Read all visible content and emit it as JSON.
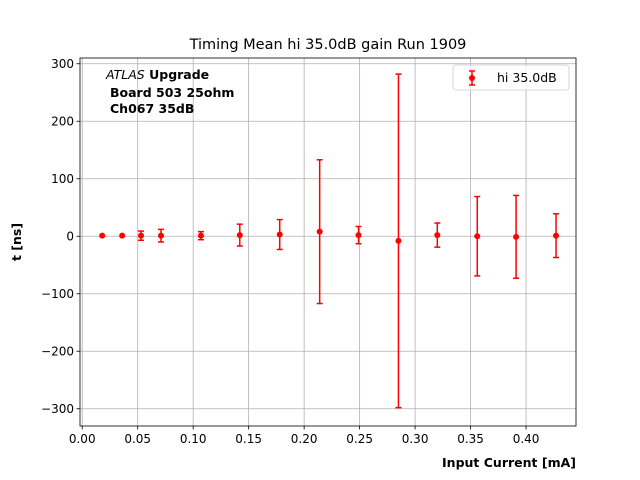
{
  "chart_data": {
    "type": "scatter",
    "title": "Timing Mean hi 35.0dB gain Run 1909",
    "xlabel": "Input Current [mA]",
    "ylabel": "t [ns]",
    "xlim": [
      -0.002,
      0.445
    ],
    "ylim": [
      -330,
      310
    ],
    "xticks": [
      0.0,
      0.05,
      0.1,
      0.15,
      0.2,
      0.25,
      0.3,
      0.35,
      0.4
    ],
    "xtick_labels": [
      "0.00",
      "0.05",
      "0.10",
      "0.15",
      "0.20",
      "0.25",
      "0.30",
      "0.35",
      "0.40"
    ],
    "yticks": [
      -300,
      -200,
      -100,
      0,
      100,
      200,
      300
    ],
    "ytick_labels": [
      "−300",
      "−200",
      "−100",
      "0",
      "100",
      "200",
      "300"
    ],
    "grid": true,
    "legend_position": "top-right",
    "annotation": {
      "atlas": "ATLAS",
      "upgrade": "Upgrade",
      "line2": "Board 503 25ohm",
      "line3": "Ch067 35dB"
    },
    "series": [
      {
        "name": "hi 35.0dB",
        "color": "#ff0000",
        "marker": "circle",
        "points": [
          {
            "x": 0.018,
            "y": 1,
            "err": 0
          },
          {
            "x": 0.036,
            "y": 1,
            "err": 0
          },
          {
            "x": 0.053,
            "y": 1,
            "err": 8
          },
          {
            "x": 0.071,
            "y": 1,
            "err": 11
          },
          {
            "x": 0.107,
            "y": 1,
            "err": 7
          },
          {
            "x": 0.142,
            "y": 2,
            "err": 19
          },
          {
            "x": 0.178,
            "y": 3,
            "err": 26
          },
          {
            "x": 0.214,
            "y": 8,
            "err": 125
          },
          {
            "x": 0.249,
            "y": 2,
            "err": 15
          },
          {
            "x": 0.285,
            "y": -8,
            "err": 290
          },
          {
            "x": 0.32,
            "y": 2,
            "err": 21
          },
          {
            "x": 0.356,
            "y": 0,
            "err": 69
          },
          {
            "x": 0.391,
            "y": -1,
            "err": 72
          },
          {
            "x": 0.427,
            "y": 1,
            "err": 38
          }
        ]
      }
    ]
  }
}
